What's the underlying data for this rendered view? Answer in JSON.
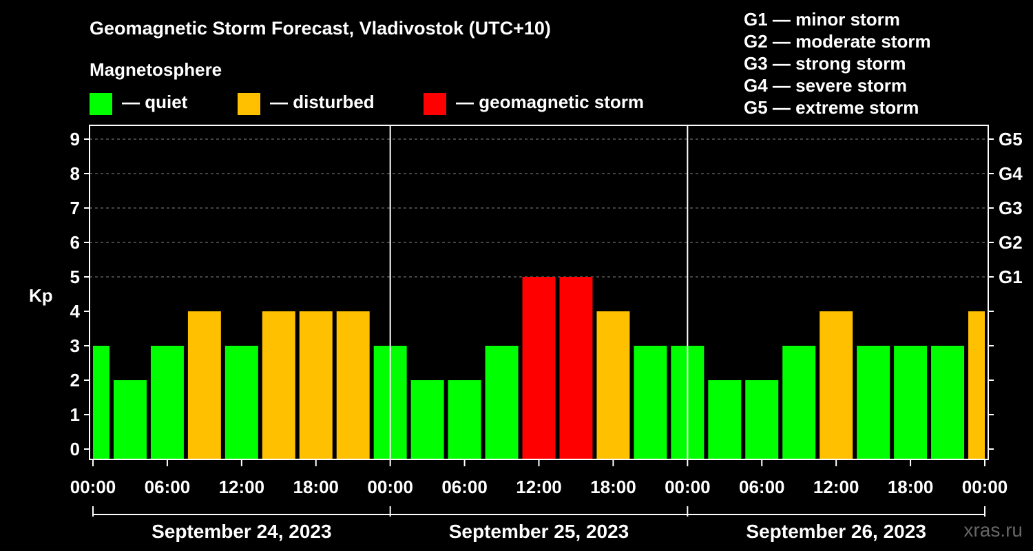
{
  "chart_data": {
    "type": "bar",
    "title": "Geomagnetic Storm Forecast, Vladivostok (UTC+10)",
    "legend_title": "Magnetosphere",
    "legend": [
      {
        "label": "— quiet",
        "color": "#00ff00"
      },
      {
        "label": "— disturbed",
        "color": "#ffc000"
      },
      {
        "label": "— geomagnetic storm",
        "color": "#ff0000"
      }
    ],
    "storm_scale": [
      "G1 — minor storm",
      "G2 — moderate storm",
      "G3 — strong storm",
      "G4 — severe storm",
      "G5 — extreme storm"
    ],
    "ylabel": "Kp",
    "ylim": [
      0,
      9
    ],
    "yticks": [
      "0",
      "1",
      "2",
      "3",
      "4",
      "5",
      "6",
      "7",
      "8",
      "9"
    ],
    "right_ticks": [
      {
        "kp": 5,
        "label": "G1"
      },
      {
        "kp": 6,
        "label": "G2"
      },
      {
        "kp": 7,
        "label": "G3"
      },
      {
        "kp": 8,
        "label": "G4"
      },
      {
        "kp": 9,
        "label": "G5"
      }
    ],
    "xlim_hours": [
      0,
      72
    ],
    "interval_hours": 3,
    "xticks": [
      {
        "hour": 0,
        "label": "00:00"
      },
      {
        "hour": 6,
        "label": "06:00"
      },
      {
        "hour": 12,
        "label": "12:00"
      },
      {
        "hour": 18,
        "label": "18:00"
      },
      {
        "hour": 24,
        "label": "00:00"
      },
      {
        "hour": 30,
        "label": "06:00"
      },
      {
        "hour": 36,
        "label": "12:00"
      },
      {
        "hour": 42,
        "label": "18:00"
      },
      {
        "hour": 48,
        "label": "00:00"
      },
      {
        "hour": 54,
        "label": "06:00"
      },
      {
        "hour": 60,
        "label": "12:00"
      },
      {
        "hour": 66,
        "label": "18:00"
      },
      {
        "hour": 72,
        "label": "00:00"
      }
    ],
    "days": [
      "September 24, 2023",
      "September 25, 2023",
      "September 26, 2023"
    ],
    "kp_values": [
      3,
      2,
      3,
      4,
      3,
      4,
      4,
      4,
      3,
      2,
      2,
      3,
      5,
      5,
      4,
      3,
      3,
      2,
      2,
      3,
      4,
      3,
      3,
      3,
      4
    ],
    "colors": {
      "quiet": "#00ff00",
      "disturbed": "#ffc000",
      "storm": "#ff0000",
      "axis": "#ffffff",
      "grid": "#888888"
    },
    "grid": true,
    "watermark": "xras.ru"
  }
}
